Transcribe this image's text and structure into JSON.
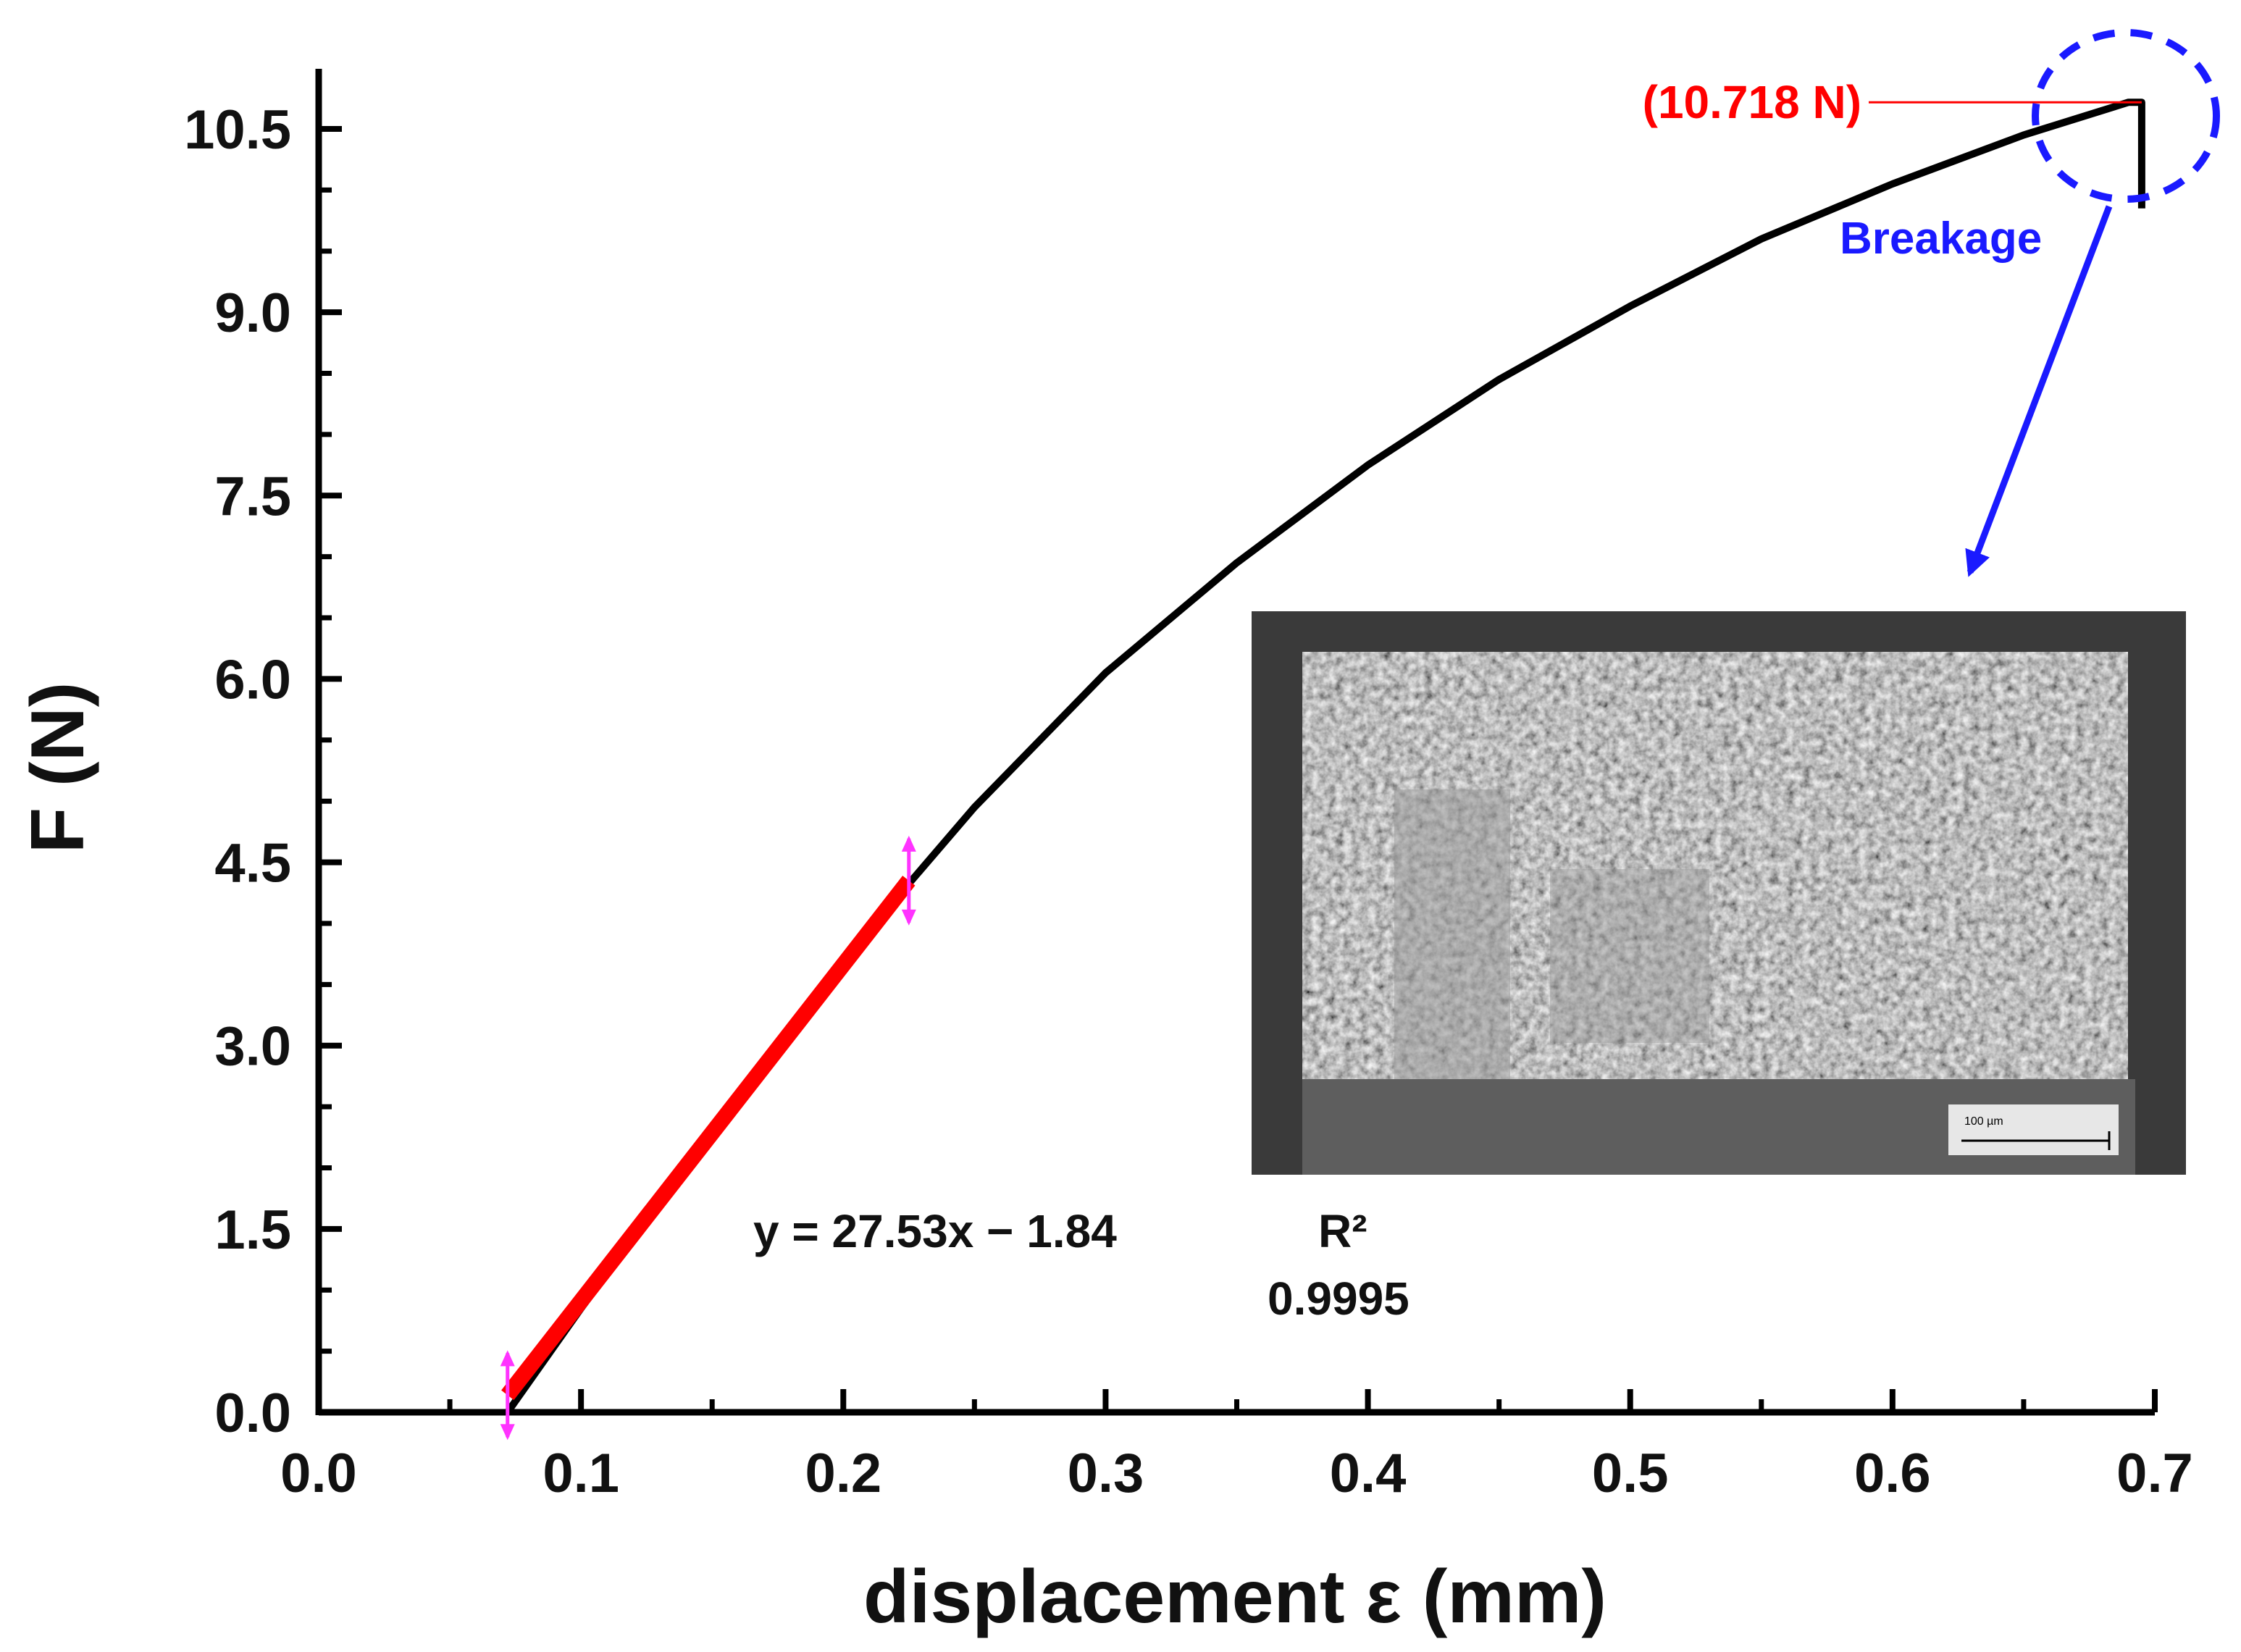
{
  "chart_data": {
    "type": "line",
    "title": "",
    "xlabel": "displacement ε (mm)",
    "ylabel": "F (N)",
    "xlim": [
      0.0,
      0.7
    ],
    "ylim": [
      0.0,
      10.5
    ],
    "x_ticks": [
      "0.0",
      "0.1",
      "0.2",
      "0.3",
      "0.4",
      "0.5",
      "0.6",
      "0.7"
    ],
    "y_ticks": [
      "0.0",
      "1.5",
      "3.0",
      "4.5",
      "6.0",
      "7.5",
      "9.0",
      "10.5"
    ],
    "grid": false,
    "series": [
      {
        "color": "#000000",
        "x": [
          0.072,
          0.1,
          0.15,
          0.2,
          0.25,
          0.3,
          0.35,
          0.4,
          0.45,
          0.5,
          0.55,
          0.6,
          0.65,
          0.69,
          0.695,
          0.695
        ],
        "y": [
          0.0,
          0.85,
          2.3,
          3.7,
          4.95,
          6.05,
          6.95,
          7.75,
          8.45,
          9.05,
          9.6,
          10.05,
          10.45,
          10.718,
          10.718,
          9.85
        ]
      },
      {
        "color": "#ff0000",
        "x": [
          0.072,
          0.225
        ],
        "y": [
          0.14,
          4.35
        ]
      }
    ],
    "fit_markers": {
      "color": "#ff33ff",
      "x": [
        0.072,
        0.225
      ]
    },
    "annotations": {
      "peak_label": "(10.718 N)",
      "peak_label_color": "#ff0000",
      "peak_x": 0.695,
      "peak_y": 10.718,
      "breakage_label": "Breakage",
      "breakage_color": "#1a1aff",
      "fit_equation": "y = 27.53x − 1.84",
      "r2_label": "R²",
      "r2_value": "0.9995"
    },
    "inset": {
      "description_kind": "SEM micrograph of fracture surface",
      "scale_bar_label": "100 µm"
    }
  }
}
